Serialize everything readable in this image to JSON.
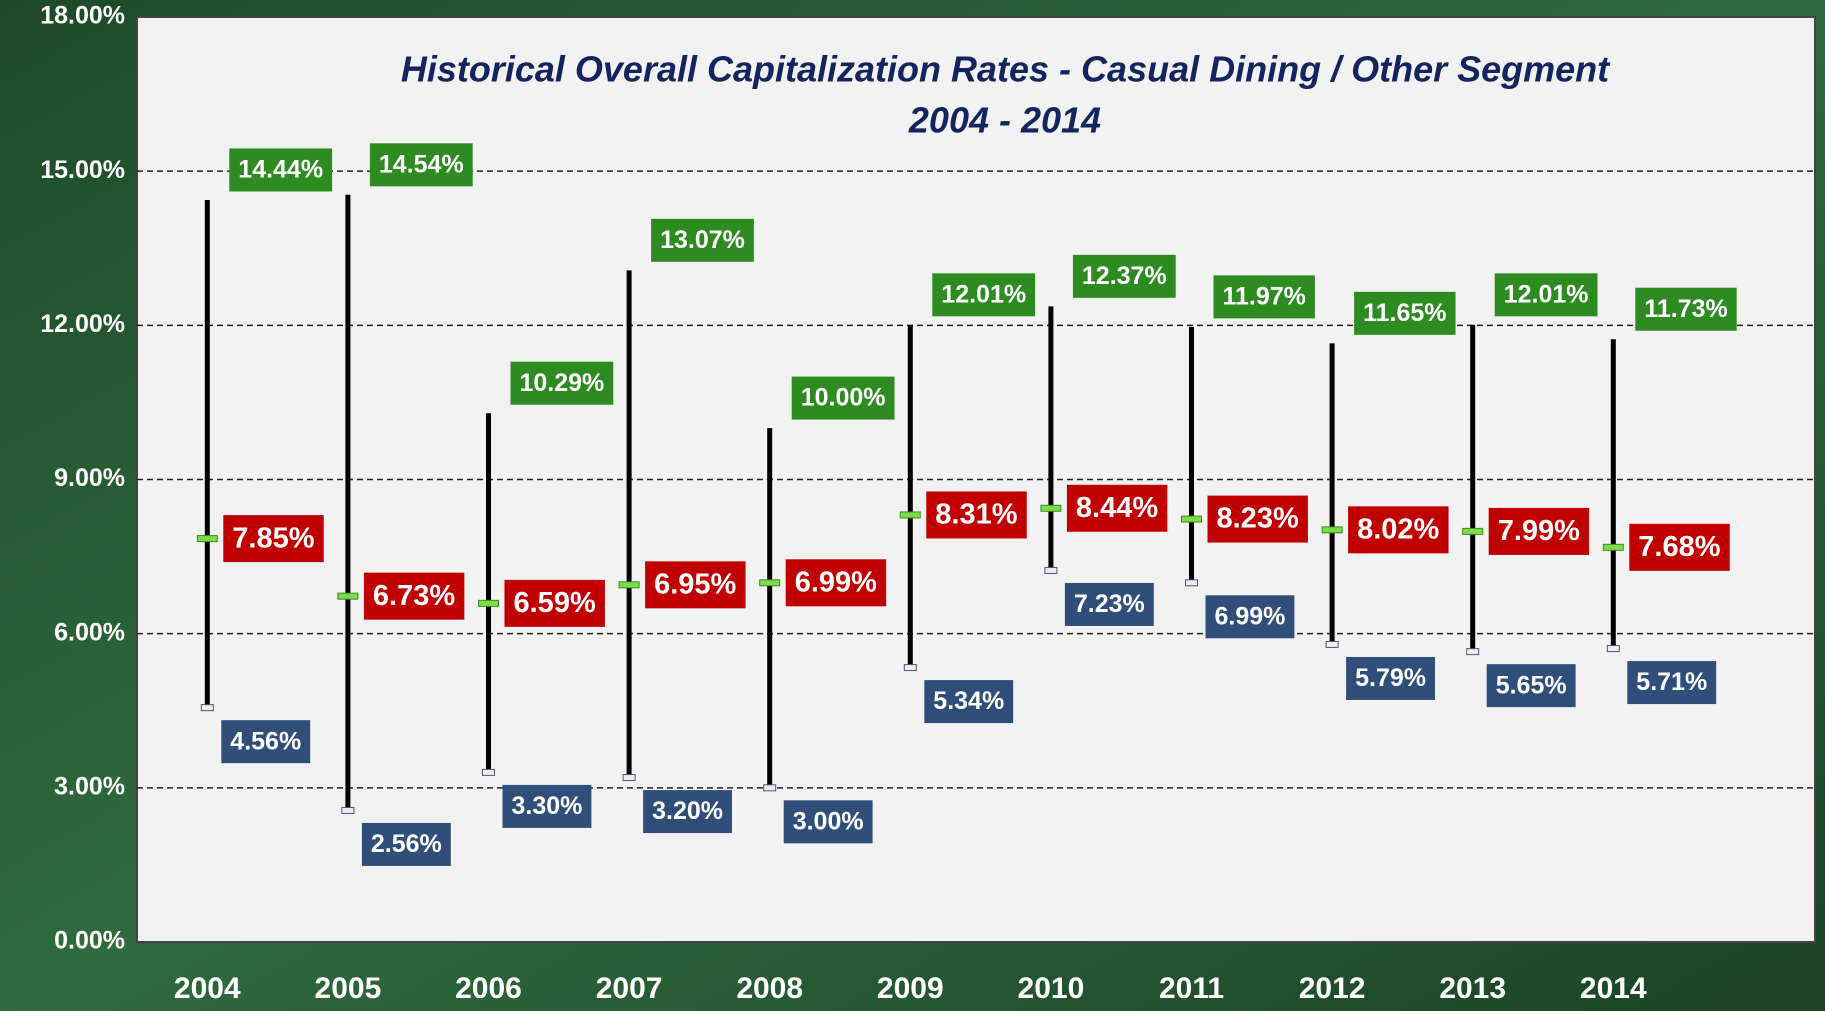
{
  "chart_data": {
    "type": "high-low",
    "title": "Historical Overall Capitalization Rates - Casual Dining / Other Segment",
    "subtitle": "2004 - 2014",
    "categories": [
      "2004",
      "2005",
      "2006",
      "2007",
      "2008",
      "2009",
      "2010",
      "2011",
      "2012",
      "2013",
      "2014"
    ],
    "high": {
      "color": "#2e8b22",
      "values": [
        14.44,
        14.54,
        10.29,
        13.07,
        10.0,
        12.01,
        12.37,
        11.97,
        11.65,
        12.01,
        11.73
      ],
      "value_labels": [
        "14.44%",
        "14.54%",
        "10.29%",
        "13.07%",
        "10.00%",
        "12.01%",
        "12.37%",
        "11.97%",
        "11.65%",
        "12.01%",
        "11.73%"
      ]
    },
    "average": {
      "color": "#c00000",
      "values": [
        7.85,
        6.73,
        6.59,
        6.95,
        6.99,
        8.31,
        8.44,
        8.23,
        8.02,
        7.99,
        7.68
      ],
      "value_labels": [
        "7.85%",
        "6.73%",
        "6.59%",
        "6.95%",
        "6.99%",
        "8.31%",
        "8.44%",
        "8.23%",
        "8.02%",
        "7.99%",
        "7.68%"
      ]
    },
    "low": {
      "color": "#2f4f7a",
      "values": [
        4.56,
        2.56,
        3.3,
        3.2,
        3.0,
        5.34,
        7.23,
        6.99,
        5.79,
        5.65,
        5.71
      ],
      "value_labels": [
        "4.56%",
        "2.56%",
        "3.30%",
        "3.20%",
        "3.00%",
        "5.34%",
        "7.23%",
        "6.99%",
        "5.79%",
        "5.65%",
        "5.71%"
      ]
    },
    "ylim": [
      0,
      18
    ],
    "yticks": [
      {
        "value": 0,
        "label": "0.00%"
      },
      {
        "value": 3,
        "label": "3.00%"
      },
      {
        "value": 6,
        "label": "6.00%"
      },
      {
        "value": 9,
        "label": "9.00%"
      },
      {
        "value": 12,
        "label": "12.00%"
      },
      {
        "value": 15,
        "label": "15.00%"
      },
      {
        "value": 18,
        "label": "18.00%"
      }
    ],
    "grid": true
  }
}
